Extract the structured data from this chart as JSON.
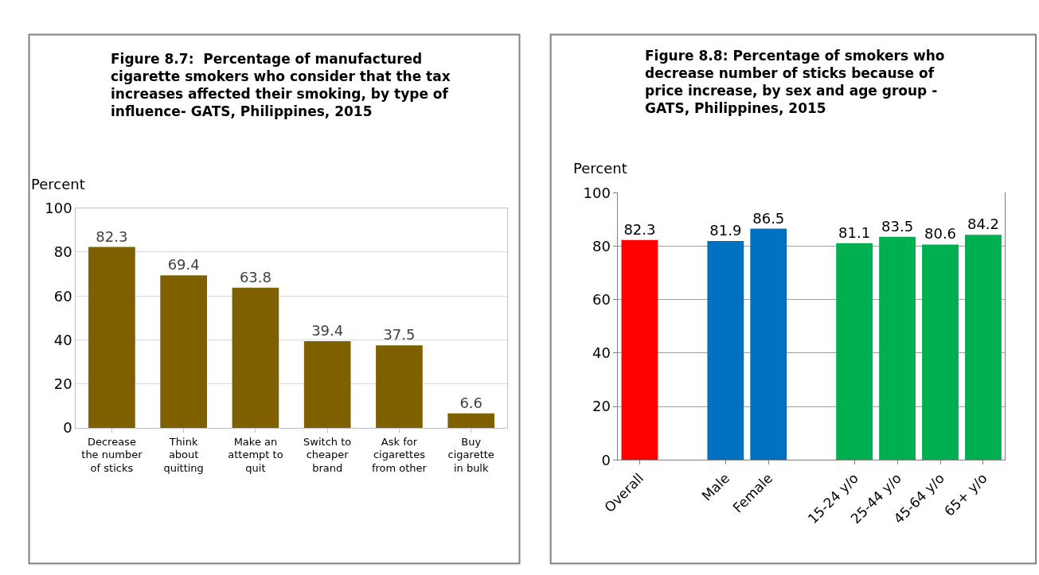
{
  "chart_data": [
    {
      "type": "bar",
      "title": "Figure 8.7:  Percentage of manufactured cigarette smokers who consider that the tax increases affected their smoking, by type of influence- GATS, Philippines, 2015",
      "ylabel": "Percent",
      "categories": [
        "Decrease the number of sticks",
        "Think about quitting",
        "Make an attempt to quit",
        "Switch to cheaper brand",
        "Ask for cigarettes from other",
        "Buy cigarette in bulk"
      ],
      "values": [
        82.3,
        69.4,
        63.8,
        39.4,
        37.5,
        6.6
      ],
      "color": "#7f6000",
      "ylim": [
        0,
        100
      ],
      "yticks": [
        0,
        20,
        40,
        60,
        80,
        100
      ],
      "grid": "y",
      "data_labels": true
    },
    {
      "type": "bar",
      "title": "Figure 8.8: Percentage of smokers who decrease number of sticks because of price increase, by sex and age group - GATS, Philippines, 2015",
      "ylabel": "Percent",
      "categories": [
        "Overall",
        null,
        "Male",
        "Female",
        null,
        "15-24 y/o",
        "25-44 y/o",
        "45-64 y/o",
        "65+ y/o"
      ],
      "values": [
        82.3,
        null,
        81.9,
        86.5,
        null,
        81.1,
        83.5,
        80.6,
        84.2
      ],
      "colors": [
        "#ff0000",
        null,
        "#0070c0",
        "#0070c0",
        null,
        "#00b050",
        "#00b050",
        "#00b050",
        "#00b050"
      ],
      "ylim": [
        0,
        100
      ],
      "yticks": [
        0,
        20,
        40,
        60,
        80,
        100
      ],
      "grid": "y",
      "data_labels": true
    }
  ]
}
